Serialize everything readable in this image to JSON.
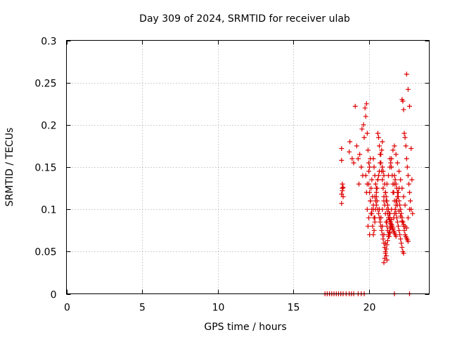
{
  "chart_data": {
    "type": "scatter",
    "title": "Day 309 of 2024, SRMTID for receiver ulab",
    "xlabel": "GPS time / hours",
    "ylabel": "SRMTID / TECUs",
    "xlim": [
      0,
      24
    ],
    "ylim": [
      0,
      0.3
    ],
    "x_ticks": [
      0,
      5,
      10,
      15,
      20
    ],
    "x_tick_labels": [
      "0",
      "5",
      "10",
      "15",
      "20"
    ],
    "y_ticks": [
      0,
      0.05,
      0.1,
      0.15,
      0.2,
      0.25,
      0.3
    ],
    "y_tick_labels": [
      "0",
      "0.05",
      "0.1",
      "0.15",
      "0.2",
      "0.25",
      "0.3"
    ],
    "grid": true,
    "marker": "+",
    "color": "#dd0000",
    "series": [
      {
        "name": "SRMTID",
        "x": [
          17.1,
          17.25,
          17.4,
          17.55,
          17.7,
          17.85,
          18.0,
          18.15,
          18.3,
          18.5,
          18.7,
          18.85,
          19.0,
          19.3,
          19.5,
          19.7,
          21.7,
          22.7,
          18.2,
          18.2,
          18.25,
          18.3,
          18.25,
          18.2,
          18.3,
          18.2,
          18.25,
          18.7,
          18.75,
          18.9,
          19.0,
          19.1,
          19.2,
          19.3,
          19.35,
          19.4,
          19.5,
          19.55,
          19.6,
          19.65,
          19.7,
          19.75,
          19.8,
          19.85,
          19.9,
          19.95,
          20.0,
          19.8,
          19.85,
          19.9,
          19.95,
          20.0,
          20.05,
          20.1,
          19.9,
          20.0,
          20.05,
          20.1,
          20.15,
          20.2,
          20.25,
          20.3,
          20.35,
          20.4,
          20.45,
          20.5,
          20.0,
          20.05,
          20.1,
          20.15,
          20.2,
          20.25,
          20.3,
          20.35,
          20.4,
          20.45,
          20.5,
          20.55,
          20.6,
          20.65,
          20.7,
          20.75,
          20.8,
          20.85,
          20.9,
          20.3,
          20.35,
          20.4,
          20.45,
          20.5,
          20.55,
          20.6,
          20.65,
          20.7,
          20.75,
          20.8,
          20.85,
          20.9,
          20.95,
          21.0,
          21.05,
          21.1,
          21.15,
          21.2,
          20.6,
          20.65,
          20.7,
          20.75,
          20.8,
          20.85,
          20.9,
          20.95,
          21.0,
          21.05,
          21.1,
          21.15,
          21.2,
          21.25,
          21.3,
          21.35,
          21.4,
          21.45,
          21.5,
          20.9,
          20.95,
          21.0,
          21.05,
          21.1,
          21.15,
          21.2,
          21.25,
          21.3,
          21.35,
          21.4,
          21.45,
          21.5,
          21.55,
          21.6,
          21.65,
          21.7,
          21.75,
          21.8,
          21.1,
          21.15,
          21.2,
          21.25,
          21.3,
          21.35,
          21.4,
          21.45,
          21.5,
          21.55,
          21.6,
          21.65,
          21.7,
          21.75,
          21.8,
          21.85,
          21.9,
          21.95,
          22.0,
          21.4,
          21.45,
          21.5,
          21.55,
          21.6,
          21.65,
          21.7,
          21.75,
          21.8,
          21.85,
          21.9,
          21.95,
          22.0,
          22.05,
          22.1,
          22.15,
          22.2,
          22.25,
          22.3,
          21.7,
          21.75,
          21.8,
          21.85,
          21.9,
          21.95,
          22.0,
          22.05,
          22.1,
          22.15,
          22.2,
          22.25,
          22.3,
          22.35,
          22.4,
          22.45,
          22.5,
          22.55,
          22.6,
          22.2,
          22.25,
          22.3,
          22.35,
          22.4,
          22.45,
          22.5,
          22.55,
          22.6,
          22.65,
          22.7,
          22.75,
          22.8,
          22.5,
          22.6,
          22.7,
          22.8,
          22.85,
          22.9,
          20.8,
          20.9,
          21.0,
          21.1,
          21.2,
          21.3,
          21.4,
          21.5,
          21.6,
          21.7,
          21.8,
          21.9,
          22.0,
          22.1,
          22.2,
          22.3,
          22.4,
          21.0,
          21.05,
          21.1,
          21.15,
          21.2,
          21.25,
          21.3,
          21.35,
          21.4,
          21.45,
          21.5,
          20.2,
          20.3,
          20.4,
          20.5,
          20.6,
          20.7,
          20.8,
          20.9,
          21.0,
          21.1,
          21.2,
          21.3,
          21.4,
          21.5,
          21.6,
          21.7,
          21.8,
          21.9,
          22.0,
          22.1,
          22.2,
          22.3,
          22.4,
          22.5,
          22.6,
          22.7
        ],
        "y": [
          0,
          0,
          0,
          0,
          0,
          0,
          0,
          0,
          0,
          0,
          0,
          0,
          0,
          0,
          0,
          0,
          0,
          0,
          0.172,
          0.158,
          0.13,
          0.126,
          0.122,
          0.118,
          0.115,
          0.107,
          0.125,
          0.168,
          0.18,
          0.16,
          0.155,
          0.222,
          0.175,
          0.16,
          0.13,
          0.165,
          0.15,
          0.195,
          0.14,
          0.2,
          0.185,
          0.22,
          0.21,
          0.225,
          0.19,
          0.17,
          0.155,
          0.14,
          0.12,
          0.1,
          0.08,
          0.09,
          0.07,
          0.11,
          0.13,
          0.145,
          0.15,
          0.16,
          0.125,
          0.135,
          0.115,
          0.1,
          0.09,
          0.085,
          0.11,
          0.105,
          0.13,
          0.12,
          0.11,
          0.095,
          0.1,
          0.08,
          0.07,
          0.075,
          0.09,
          0.1,
          0.115,
          0.125,
          0.135,
          0.14,
          0.145,
          0.155,
          0.165,
          0.17,
          0.18,
          0.16,
          0.15,
          0.14,
          0.13,
          0.12,
          0.11,
          0.1,
          0.095,
          0.09,
          0.085,
          0.08,
          0.075,
          0.07,
          0.065,
          0.06,
          0.055,
          0.05,
          0.045,
          0.04,
          0.19,
          0.185,
          0.175,
          0.165,
          0.155,
          0.145,
          0.135,
          0.125,
          0.115,
          0.105,
          0.095,
          0.085,
          0.08,
          0.075,
          0.07,
          0.068,
          0.072,
          0.078,
          0.082,
          0.15,
          0.145,
          0.14,
          0.13,
          0.12,
          0.11,
          0.1,
          0.095,
          0.09,
          0.088,
          0.085,
          0.083,
          0.08,
          0.078,
          0.076,
          0.074,
          0.072,
          0.07,
          0.068,
          0.12,
          0.115,
          0.11,
          0.105,
          0.1,
          0.095,
          0.09,
          0.085,
          0.082,
          0.08,
          0.078,
          0.09,
          0.095,
          0.1,
          0.105,
          0.11,
          0.115,
          0.12,
          0.125,
          0.16,
          0.155,
          0.15,
          0.14,
          0.13,
          0.12,
          0.11,
          0.1,
          0.095,
          0.09,
          0.085,
          0.08,
          0.075,
          0.07,
          0.065,
          0.06,
          0.055,
          0.05,
          0.048,
          0.14,
          0.135,
          0.13,
          0.125,
          0.12,
          0.115,
          0.11,
          0.105,
          0.1,
          0.095,
          0.09,
          0.085,
          0.08,
          0.075,
          0.07,
          0.068,
          0.066,
          0.064,
          0.062,
          0.23,
          0.228,
          0.218,
          0.19,
          0.185,
          0.175,
          0.16,
          0.15,
          0.14,
          0.13,
          0.12,
          0.11,
          0.1,
          0.26,
          0.242,
          0.222,
          0.172,
          0.135,
          0.095,
          0.09,
          0.1,
          0.11,
          0.12,
          0.13,
          0.14,
          0.15,
          0.16,
          0.17,
          0.175,
          0.165,
          0.155,
          0.145,
          0.135,
          0.125,
          0.115,
          0.105,
          0.037,
          0.042,
          0.048,
          0.053,
          0.058,
          0.063,
          0.068,
          0.073,
          0.078,
          0.083,
          0.088,
          0.095,
          0.105,
          0.115,
          0.125,
          0.135,
          0.1,
          0.09,
          0.08,
          0.07,
          0.06,
          0.085,
          0.09,
          0.095,
          0.1,
          0.12,
          0.13,
          0.11,
          0.105,
          0.098,
          0.092,
          0.086,
          0.082,
          0.08,
          0.078,
          0.09,
          0.1
        ]
      }
    ]
  }
}
